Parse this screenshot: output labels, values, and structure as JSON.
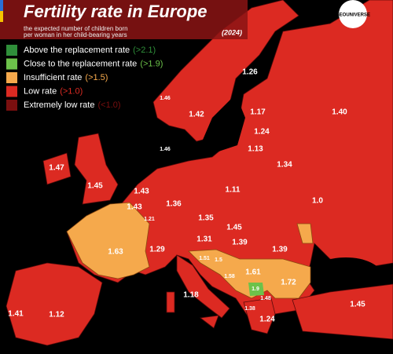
{
  "header": {
    "title": "Fertility rate in Europe",
    "subtitle_lines": [
      "the expected number of children born",
      "per woman in her child-bearing years"
    ],
    "year": "(2024)",
    "brand": "GEOUNIVERSE"
  },
  "legend": [
    {
      "label": "Above the replacement rate",
      "threshold": "(>2.1)",
      "color": "#2f8f3a"
    },
    {
      "label": "Close to the replacement rate",
      "threshold": "(>1.9)",
      "color": "#6cc24a"
    },
    {
      "label": "Insufficient rate",
      "threshold": "(>1.5)",
      "color": "#f5a94c"
    },
    {
      "label": "Low rate",
      "threshold": "(>1.0)",
      "color": "#dc2a22"
    },
    {
      "label": "Extremely low rate",
      "threshold": "(<1.0)",
      "color": "#7a0f0f"
    }
  ],
  "regions": [
    "1.26",
    "1.46",
    "1.42",
    "1.17",
    "1.40",
    "1.24",
    "1.13",
    "1.46",
    "1.47",
    "1.34",
    "1.45",
    "1.43",
    "1.11",
    "1.0",
    "1.43",
    "1.36",
    "1.21",
    "1.35",
    "1.45",
    "1.31",
    "1.39",
    "1.29",
    "1.63",
    "1.39",
    "1.51",
    "1.5",
    "1.61",
    "1.58",
    "1.72",
    "1.9",
    "1.18",
    "1.48",
    "1.45",
    "1.38",
    "1.41",
    "1.12",
    "1.24"
  ]
}
